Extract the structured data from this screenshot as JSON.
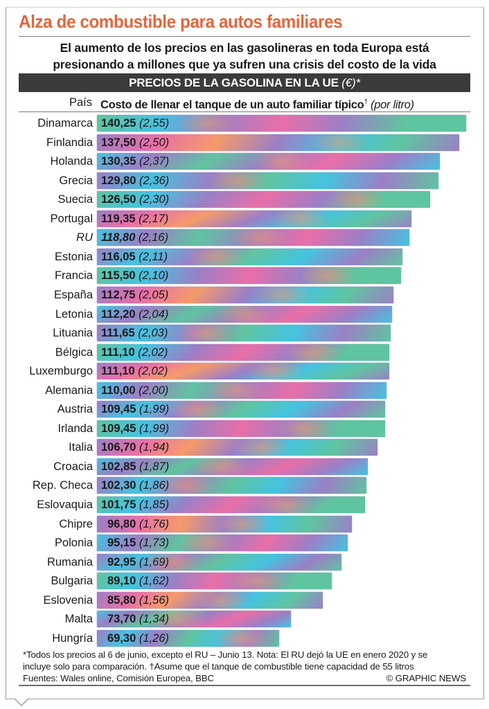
{
  "header": {
    "title": "Alza de combustible para autos familiares",
    "subtitle_line1": "El aumento de los precios en las gasolineras en toda Europa está",
    "subtitle_line2": "presionando a millones que ya sufren una crisis del costo de la vida",
    "band_title": "PRECIOS DE LA GASOLINA EN LA UE",
    "band_unit": "(€)*",
    "col_country": "País",
    "col_cost": "Costo de llenar el tanque de un auto familiar típico",
    "col_cost_mark": "†",
    "col_per_litre": "(por litro)"
  },
  "colors": {
    "title": "#e8643a",
    "band_bg": "#3b3b3b",
    "bar_green": "#5fc4a0",
    "bar_purple": "#9b7fc6",
    "bar_pink": "#e86fa8",
    "bar_orange": "#f59a6a",
    "bar_cyan": "#45c3e0"
  },
  "chart_data": {
    "type": "bar",
    "orientation": "horizontal",
    "title": "PRECIOS DE LA GASOLINA EN LA UE (€)*",
    "xlabel": "Costo de llenar el tanque de un auto familiar típico† (por litro)",
    "ylabel": "País",
    "xlim": [
      0,
      140.25
    ],
    "grid": false,
    "categories": [
      "Dinamarca",
      "Finlandia",
      "Holanda",
      "Grecia",
      "Suecia",
      "Portugal",
      "RU",
      "Estonia",
      "Francia",
      "España",
      "Letonia",
      "Lituania",
      "Bélgica",
      "Luxemburgo",
      "Alemania",
      "Austria",
      "Irlanda",
      "Italia",
      "Croacia",
      "Rep. Checa",
      "Eslovaquia",
      "Chipre",
      "Polonia",
      "Rumania",
      "Bulgaria",
      "Eslovenia",
      "Malta",
      "Hungría"
    ],
    "series": [
      {
        "name": "Costo del tanque (€)",
        "values": [
          140.25,
          137.5,
          130.35,
          129.8,
          126.5,
          119.35,
          118.8,
          116.05,
          115.5,
          112.75,
          112.2,
          111.65,
          111.1,
          111.1,
          110.0,
          109.45,
          109.45,
          106.7,
          102.85,
          102.3,
          101.75,
          96.8,
          95.15,
          92.95,
          89.1,
          85.8,
          73.7,
          69.3
        ]
      },
      {
        "name": "Por litro (€)",
        "values": [
          2.55,
          2.5,
          2.37,
          2.36,
          2.3,
          2.17,
          2.16,
          2.11,
          2.1,
          2.05,
          2.04,
          2.03,
          2.02,
          2.02,
          2.0,
          1.99,
          1.99,
          1.94,
          1.87,
          1.86,
          1.85,
          1.76,
          1.73,
          1.69,
          1.62,
          1.56,
          1.34,
          1.26
        ]
      }
    ],
    "labels_cost": [
      "140,25",
      "137,50",
      "130,35",
      "129,80",
      "126,50",
      "119,35",
      "118,80",
      "116,05",
      "115,50",
      "112,75",
      "112,20",
      "111,65",
      "111,10",
      "111,10",
      "110,00",
      "109,45",
      "109,45",
      "106,70",
      "102,85",
      "102,30",
      "101,75",
      "96,80",
      "95,15",
      "92,95",
      "89,10",
      "85,80",
      "73,70",
      "69,30"
    ],
    "labels_litre": [
      "(2,55)",
      "(2,50)",
      "(2,37)",
      "(2,36)",
      "(2,30)",
      "(2,17)",
      "(2,16)",
      "(2,11)",
      "(2,10)",
      "(2,05)",
      "(2,04)",
      "(2,03)",
      "(2,02)",
      "(2,02)",
      "(2,00)",
      "(1,99)",
      "(1,99)",
      "(1,94)",
      "(1,87)",
      "(1,86)",
      "(1,85)",
      "(1,76)",
      "(1,73)",
      "(1,69)",
      "(1,62)",
      "(1,56)",
      "(1,34)",
      "(1,26)"
    ],
    "italic_categories": [
      "RU"
    ]
  },
  "footer": {
    "note_line1": "*Todos los precios al 6 de junio, excepto el RU – Junio 13. Nota: El RU dejó la UE en enero 2020 y se",
    "note_line2": "incluye solo para comparación. †Asume que el tanque de combustible tiene capacidad de 55 litros",
    "sources": "Fuentes: Wales online, Comisión Europea, BBC",
    "credit": "© GRAPHIC NEWS"
  }
}
